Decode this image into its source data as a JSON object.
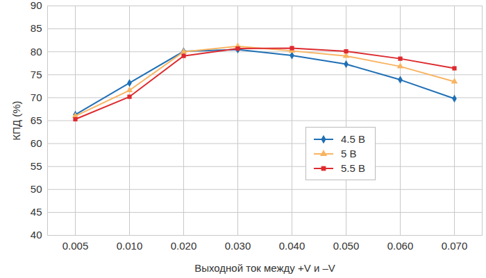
{
  "chart_data": {
    "type": "line",
    "x_label": "Выходной ток между +V и –V",
    "y_label": "КПД (%)",
    "categories": [
      "0.005",
      "0.010",
      "0.020",
      "0.030",
      "0.040",
      "0.050",
      "0.060",
      "0.070"
    ],
    "series": [
      {
        "name": "4.5 В",
        "color": "#1f6fb5",
        "marker": "diamond",
        "values": [
          66.3,
          73.2,
          80.1,
          80.5,
          79.2,
          77.3,
          73.9,
          69.8
        ]
      },
      {
        "name": "5 В",
        "color": "#f8b462",
        "marker": "triangle",
        "values": [
          66.0,
          71.6,
          80.0,
          81.2,
          80.2,
          79.1,
          76.8,
          73.5
        ]
      },
      {
        "name": "5.5 В",
        "color": "#dd2a2f",
        "marker": "square",
        "values": [
          65.3,
          70.2,
          79.1,
          80.7,
          80.8,
          80.1,
          78.5,
          76.4
        ]
      }
    ],
    "ylim": [
      40,
      90
    ],
    "yticks": [
      40,
      45,
      50,
      55,
      60,
      65,
      70,
      75,
      80,
      85,
      90
    ],
    "grid": true,
    "legend": "right"
  }
}
